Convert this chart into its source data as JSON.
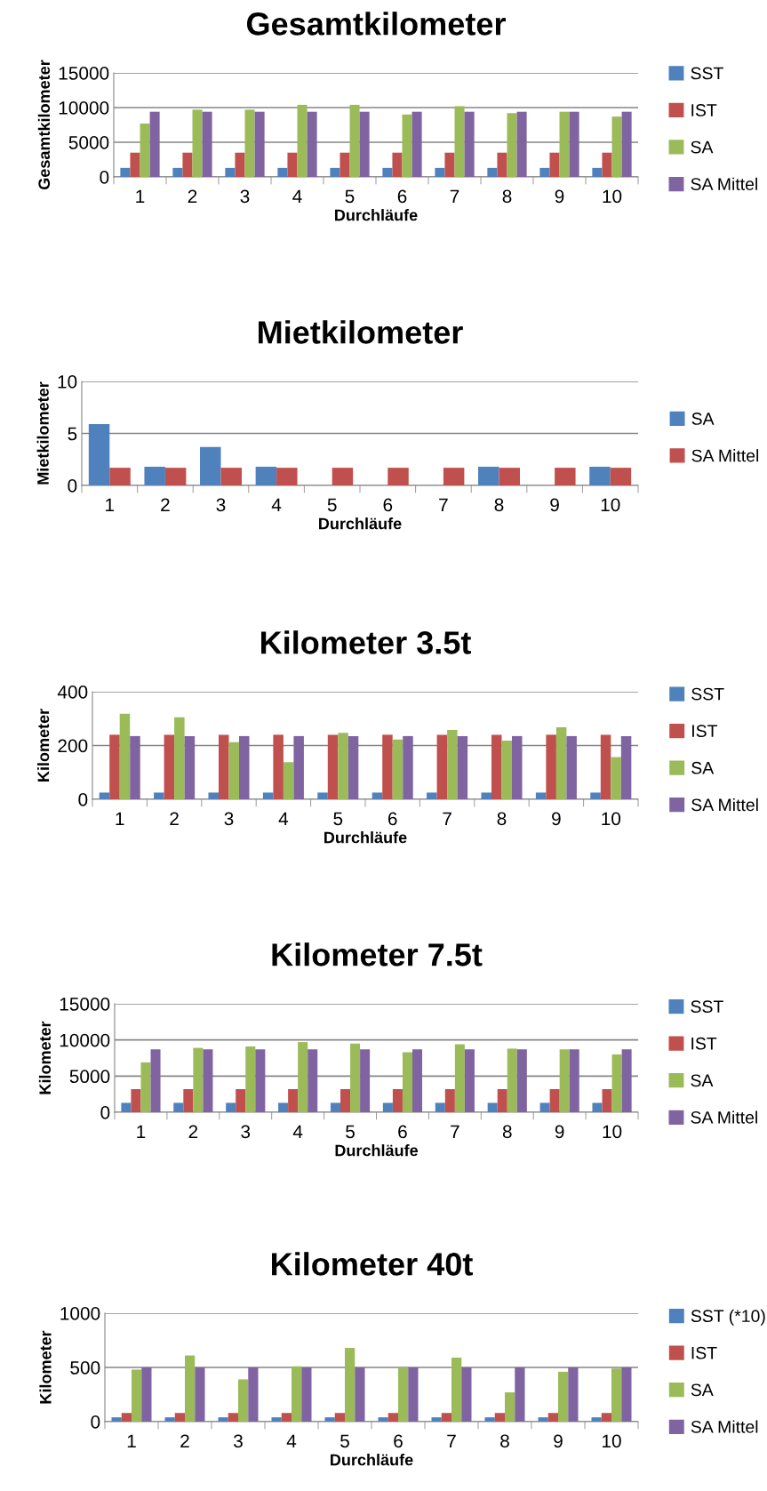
{
  "chart_data": [
    {
      "type": "bar",
      "title": "Gesamtkilometer",
      "xlabel": "Durchläufe",
      "ylabel": "Gesamtkilometer",
      "categories": [
        "1",
        "2",
        "3",
        "4",
        "5",
        "6",
        "7",
        "8",
        "9",
        "10"
      ],
      "ylim": [
        0,
        15000
      ],
      "yticks": [
        0,
        5000,
        10000,
        15000
      ],
      "grid": "y",
      "legend": "right",
      "series": [
        {
          "name": "SST",
          "color": "#4f81bd",
          "values": [
            1300,
            1300,
            1300,
            1300,
            1300,
            1300,
            1300,
            1300,
            1300,
            1300
          ]
        },
        {
          "name": "IST",
          "color": "#c0504d",
          "values": [
            3500,
            3500,
            3500,
            3500,
            3500,
            3500,
            3500,
            3500,
            3500,
            3500
          ]
        },
        {
          "name": "SA",
          "color": "#9bbb59",
          "values": [
            7700,
            9700,
            9700,
            10400,
            10400,
            9000,
            10200,
            9200,
            9400,
            8700
          ]
        },
        {
          "name": "SA Mittel",
          "color": "#8064a2",
          "values": [
            9400,
            9400,
            9400,
            9400,
            9400,
            9400,
            9400,
            9400,
            9400,
            9400
          ]
        }
      ]
    },
    {
      "type": "bar",
      "title": "Mietkilometer",
      "xlabel": "Durchläufe",
      "ylabel": "Mietkilometer",
      "categories": [
        "1",
        "2",
        "3",
        "4",
        "5",
        "6",
        "7",
        "8",
        "9",
        "10"
      ],
      "ylim": [
        0,
        10
      ],
      "yticks": [
        0,
        5,
        10
      ],
      "grid": "y",
      "legend": "right",
      "series": [
        {
          "name": "SA",
          "color": "#4f81bd",
          "values": [
            5.9,
            1.8,
            3.7,
            1.8,
            0,
            0,
            0,
            1.8,
            0,
            1.8
          ]
        },
        {
          "name": "SA Mittel",
          "color": "#c0504d",
          "values": [
            1.7,
            1.7,
            1.7,
            1.7,
            1.7,
            1.7,
            1.7,
            1.7,
            1.7,
            1.7
          ]
        }
      ]
    },
    {
      "type": "bar",
      "title": "Kilometer 3.5t",
      "xlabel": "Durchläufe",
      "ylabel": "Kilometer",
      "categories": [
        "1",
        "2",
        "3",
        "4",
        "5",
        "6",
        "7",
        "8",
        "9",
        "10"
      ],
      "ylim": [
        0,
        400
      ],
      "yticks": [
        0,
        200,
        400
      ],
      "grid": "y",
      "legend": "right",
      "series": [
        {
          "name": "SST",
          "color": "#4f81bd",
          "values": [
            25,
            25,
            25,
            25,
            25,
            25,
            25,
            25,
            25,
            25
          ]
        },
        {
          "name": "IST",
          "color": "#c0504d",
          "values": [
            240,
            240,
            240,
            240,
            240,
            240,
            240,
            240,
            240,
            240
          ]
        },
        {
          "name": "SA",
          "color": "#9bbb59",
          "values": [
            318,
            305,
            212,
            138,
            247,
            222,
            258,
            218,
            268,
            157
          ]
        },
        {
          "name": "SA Mittel",
          "color": "#8064a2",
          "values": [
            235,
            235,
            235,
            235,
            235,
            235,
            235,
            235,
            235,
            235
          ]
        }
      ]
    },
    {
      "type": "bar",
      "title": "Kilometer 7.5t",
      "xlabel": "Durchläufe",
      "ylabel": "Kilometer",
      "categories": [
        "1",
        "2",
        "3",
        "4",
        "5",
        "6",
        "7",
        "8",
        "9",
        "10"
      ],
      "ylim": [
        0,
        15000
      ],
      "yticks": [
        0,
        5000,
        10000,
        15000
      ],
      "grid": "y",
      "legend": "right",
      "series": [
        {
          "name": "SST",
          "color": "#4f81bd",
          "values": [
            1300,
            1300,
            1300,
            1300,
            1300,
            1300,
            1300,
            1300,
            1300,
            1300
          ]
        },
        {
          "name": "IST",
          "color": "#c0504d",
          "values": [
            3200,
            3200,
            3200,
            3200,
            3200,
            3200,
            3200,
            3200,
            3200,
            3200
          ]
        },
        {
          "name": "SA",
          "color": "#9bbb59",
          "values": [
            6900,
            8900,
            9100,
            9700,
            9500,
            8300,
            9400,
            8800,
            8700,
            8000
          ]
        },
        {
          "name": "SA Mittel",
          "color": "#8064a2",
          "values": [
            8700,
            8700,
            8700,
            8700,
            8700,
            8700,
            8700,
            8700,
            8700,
            8700
          ]
        }
      ]
    },
    {
      "type": "bar",
      "title": "Kilometer 40t",
      "xlabel": "Durchläufe",
      "ylabel": "Kilometer",
      "categories": [
        "1",
        "2",
        "3",
        "4",
        "5",
        "6",
        "7",
        "8",
        "9",
        "10"
      ],
      "ylim": [
        0,
        1000
      ],
      "yticks": [
        0,
        500,
        1000
      ],
      "grid": "y",
      "legend": "right",
      "series": [
        {
          "name": "SST (*10)",
          "color": "#4f81bd",
          "values": [
            40,
            40,
            40,
            40,
            40,
            40,
            40,
            40,
            40,
            40
          ]
        },
        {
          "name": "IST",
          "color": "#c0504d",
          "values": [
            80,
            80,
            80,
            80,
            80,
            80,
            80,
            80,
            80,
            80
          ]
        },
        {
          "name": "SA",
          "color": "#9bbb59",
          "values": [
            480,
            610,
            390,
            510,
            680,
            500,
            590,
            270,
            460,
            490
          ]
        },
        {
          "name": "SA Mittel",
          "color": "#8064a2",
          "values": [
            500,
            500,
            500,
            500,
            500,
            500,
            500,
            500,
            500,
            500
          ]
        }
      ]
    }
  ]
}
